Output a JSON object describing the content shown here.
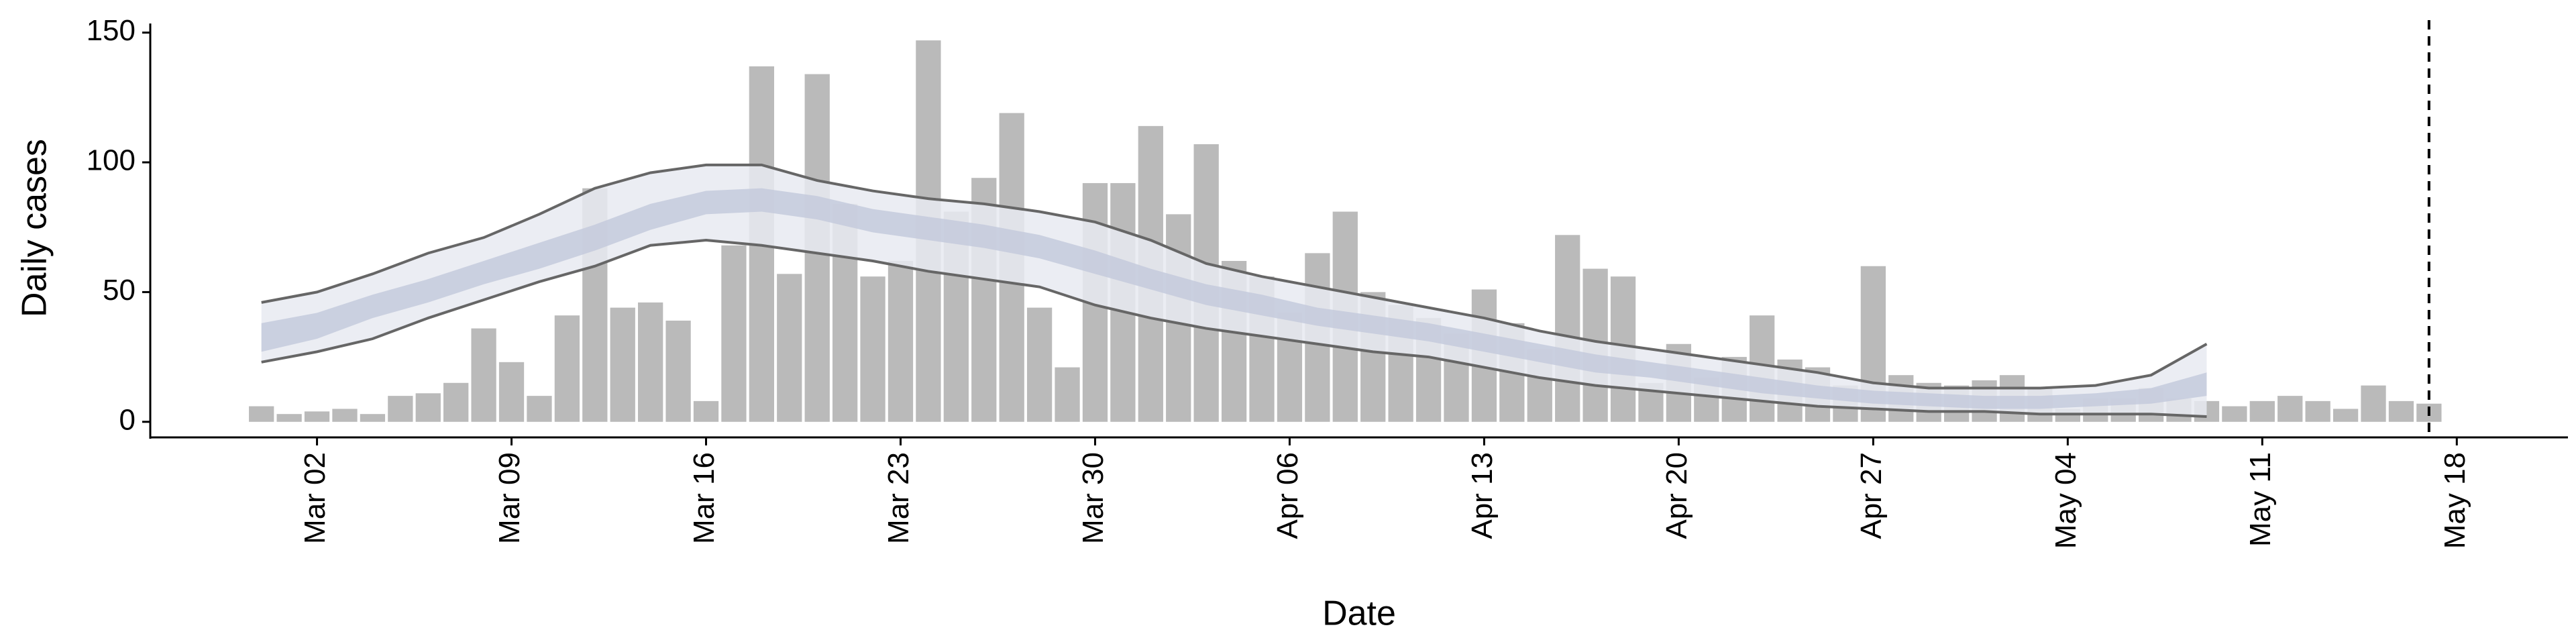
{
  "chart_data": {
    "type": "bar",
    "x_label": "Date",
    "y_label": "Daily cases",
    "x": [
      "Feb 29",
      "Mar 01",
      "Mar 02",
      "Mar 03",
      "Mar 04",
      "Mar 05",
      "Mar 06",
      "Mar 07",
      "Mar 08",
      "Mar 09",
      "Mar 10",
      "Mar 11",
      "Mar 12",
      "Mar 13",
      "Mar 14",
      "Mar 15",
      "Mar 16",
      "Mar 17",
      "Mar 18",
      "Mar 19",
      "Mar 20",
      "Mar 21",
      "Mar 22",
      "Mar 23",
      "Mar 24",
      "Mar 25",
      "Mar 26",
      "Mar 27",
      "Mar 28",
      "Mar 29",
      "Mar 30",
      "Mar 31",
      "Apr 01",
      "Apr 02",
      "Apr 03",
      "Apr 04",
      "Apr 05",
      "Apr 06",
      "Apr 07",
      "Apr 08",
      "Apr 09",
      "Apr 10",
      "Apr 11",
      "Apr 12",
      "Apr 13",
      "Apr 14",
      "Apr 15",
      "Apr 16",
      "Apr 17",
      "Apr 18",
      "Apr 19",
      "Apr 20",
      "Apr 21",
      "Apr 22",
      "Apr 23",
      "Apr 24",
      "Apr 25",
      "Apr 26",
      "Apr 27",
      "Apr 28",
      "Apr 29",
      "Apr 30",
      "May 01",
      "May 02",
      "May 03",
      "May 04",
      "May 05",
      "May 06",
      "May 07",
      "May 08",
      "May 09",
      "May 10",
      "May 11",
      "May 12",
      "May 13",
      "May 14",
      "May 15",
      "May 16",
      "May 17"
    ],
    "values": [
      6,
      3,
      4,
      5,
      3,
      10,
      11,
      15,
      36,
      23,
      10,
      41,
      90,
      44,
      46,
      39,
      8,
      68,
      137,
      57,
      134,
      84,
      56,
      62,
      147,
      81,
      94,
      119,
      44,
      21,
      92,
      92,
      114,
      80,
      107,
      62,
      56,
      42,
      65,
      81,
      50,
      45,
      40,
      34,
      51,
      38,
      28,
      72,
      59,
      56,
      15,
      30,
      17,
      25,
      41,
      24,
      21,
      14,
      60,
      18,
      15,
      14,
      16,
      18,
      13,
      5,
      9,
      9,
      13,
      9,
      8,
      6,
      8,
      10,
      8,
      5,
      14,
      8,
      7
    ],
    "color": "#bababa",
    "model": {
      "x": [
        "Feb 29",
        "Mar 02",
        "Mar 04",
        "Mar 06",
        "Mar 08",
        "Mar 10",
        "Mar 12",
        "Mar 14",
        "Mar 16",
        "Mar 18",
        "Mar 20",
        "Mar 22",
        "Mar 24",
        "Mar 26",
        "Mar 28",
        "Mar 30",
        "Apr 01",
        "Apr 03",
        "Apr 05",
        "Apr 07",
        "Apr 09",
        "Apr 11",
        "Apr 13",
        "Apr 15",
        "Apr 17",
        "Apr 19",
        "Apr 21",
        "Apr 23",
        "Apr 25",
        "Apr 27",
        "Apr 29",
        "May 01",
        "May 03",
        "May 05",
        "May 07",
        "May 09"
      ],
      "upper": [
        46,
        50,
        57,
        65,
        71,
        80,
        90,
        96,
        99,
        99,
        93,
        89,
        86,
        84,
        81,
        77,
        70,
        61,
        56,
        52,
        48,
        44,
        40,
        35,
        31,
        28,
        25,
        22,
        19,
        15,
        13,
        13,
        13,
        14,
        18,
        30
      ],
      "lower": [
        23,
        27,
        32,
        40,
        47,
        54,
        60,
        68,
        70,
        68,
        65,
        62,
        58,
        55,
        52,
        45,
        40,
        36,
        33,
        30,
        27,
        25,
        21,
        17,
        14,
        12,
        10,
        8,
        6,
        5,
        4,
        4,
        3,
        3,
        3,
        2
      ],
      "inner_upper": [
        38,
        42,
        49,
        55,
        62,
        69,
        76,
        84,
        89,
        90,
        87,
        82,
        79,
        76,
        72,
        66,
        59,
        53,
        49,
        44,
        41,
        38,
        34,
        30,
        26,
        23,
        20,
        17,
        14,
        12,
        11,
        10,
        10,
        11,
        13,
        19
      ],
      "inner_lower": [
        27,
        32,
        40,
        46,
        53,
        59,
        66,
        74,
        80,
        81,
        78,
        73,
        70,
        67,
        63,
        57,
        51,
        45,
        41,
        37,
        34,
        31,
        27,
        23,
        19,
        17,
        14,
        11,
        9,
        7,
        6,
        5,
        5,
        6,
        7,
        10
      ],
      "outer_color": "#e8eaf1",
      "inner_color": "#c4cadc",
      "line_color": "#666666"
    },
    "vline": "May 17",
    "xlim": [
      "Feb 25",
      "May 22"
    ],
    "xticks": [
      "Mar 02",
      "Mar 09",
      "Mar 16",
      "Mar 23",
      "Mar 30",
      "Apr 06",
      "Apr 13",
      "Apr 20",
      "Apr 27",
      "May 04",
      "May 11",
      "May 18"
    ],
    "ylim": [
      -6,
      153
    ],
    "yticks": [
      0,
      50,
      100,
      150
    ]
  }
}
